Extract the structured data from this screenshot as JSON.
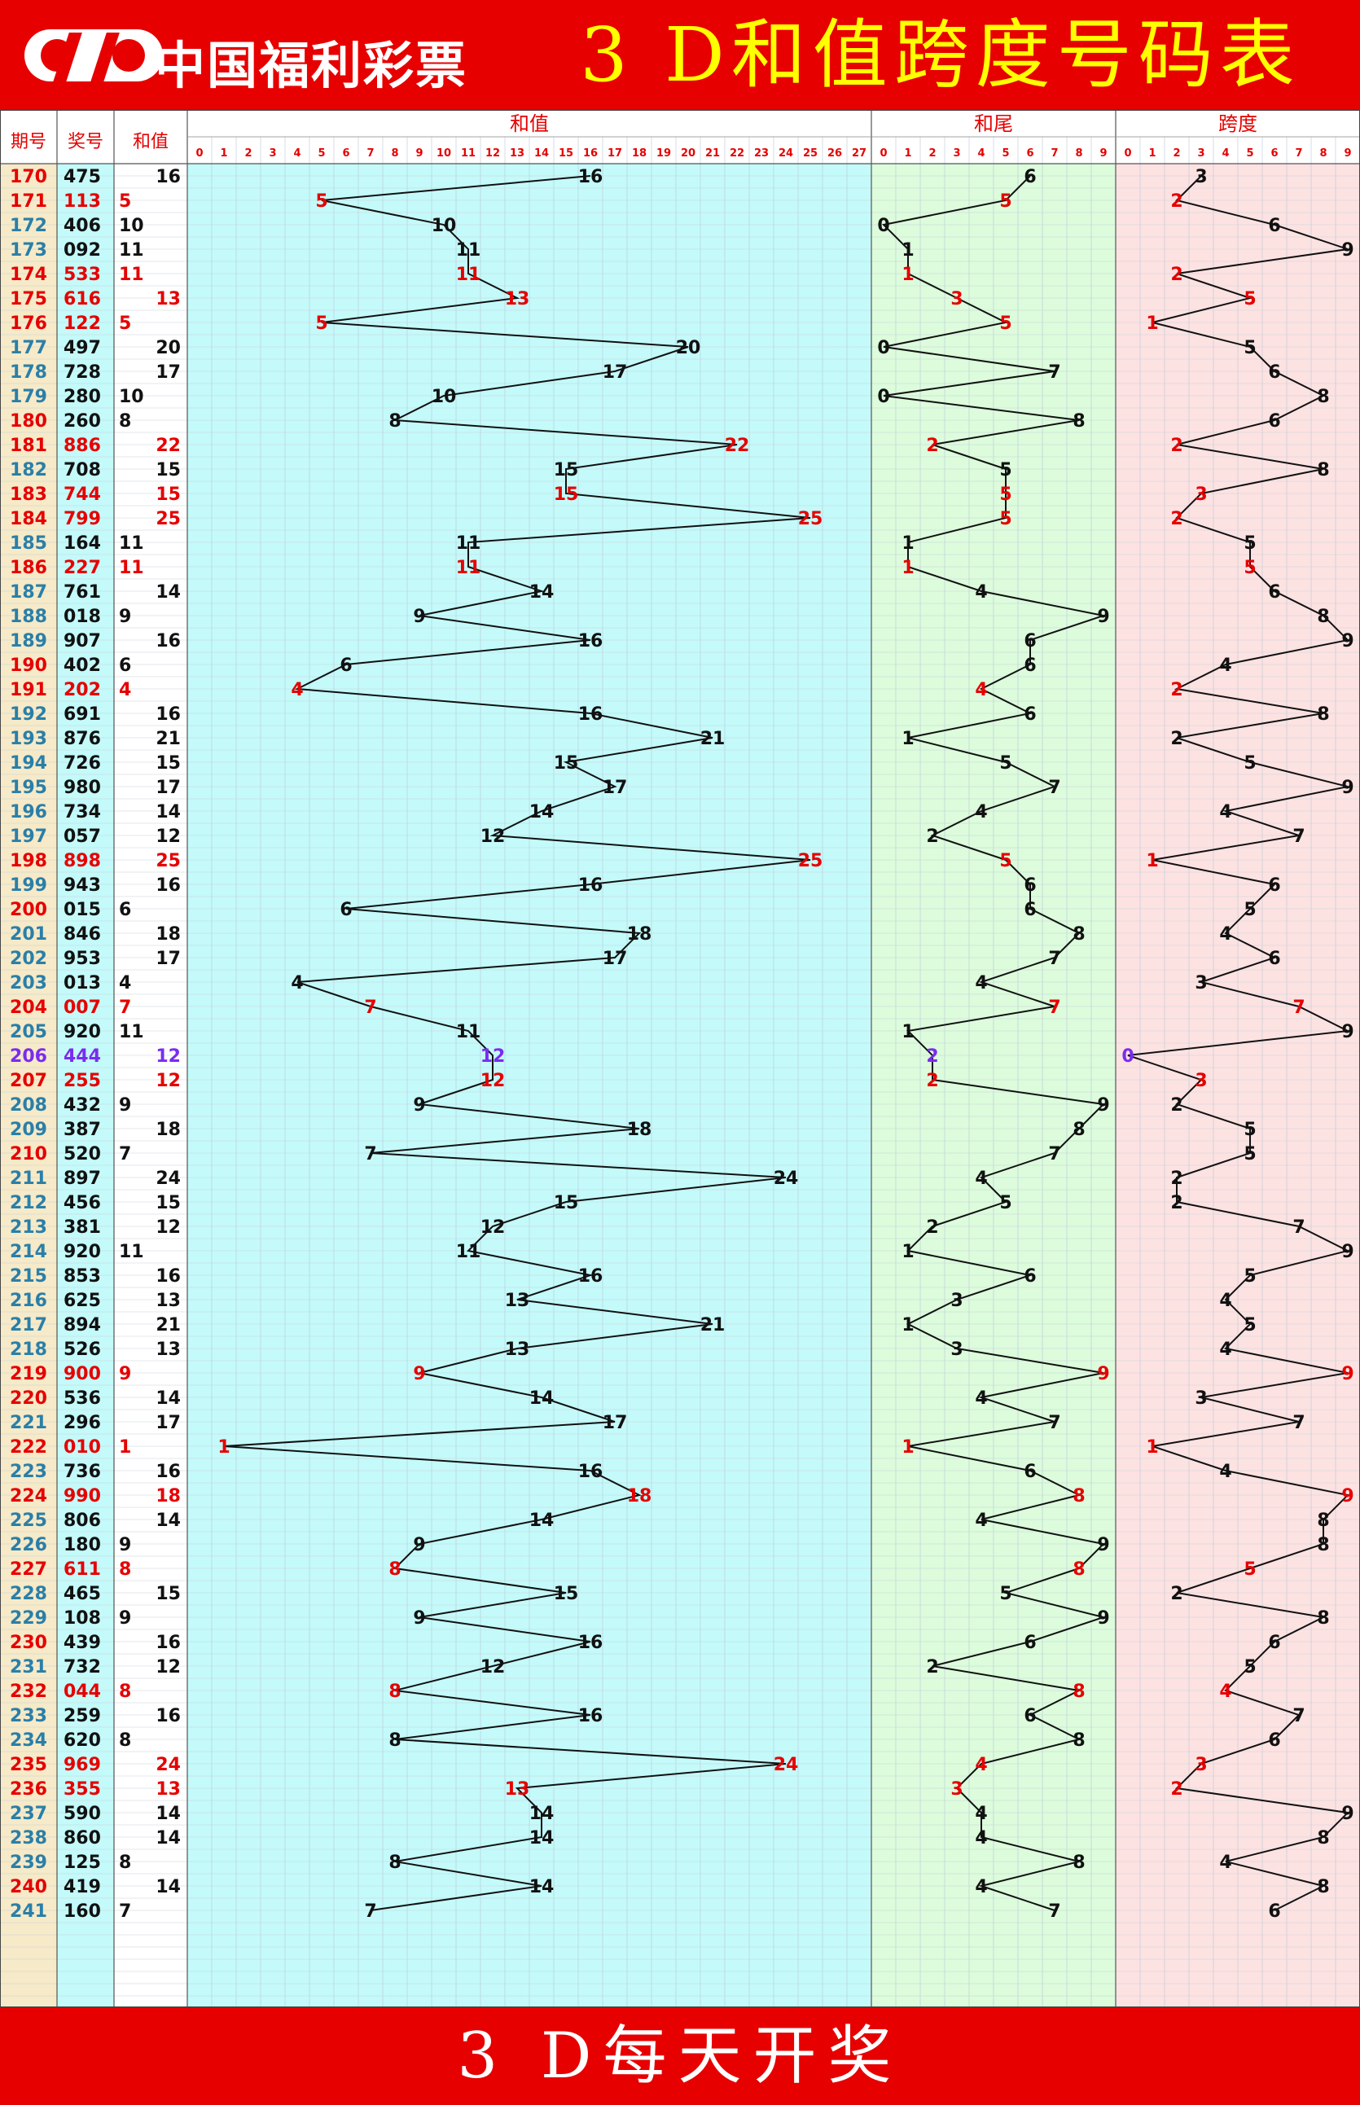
{
  "header": {
    "logo_text": "中国福利彩票",
    "title": "3 D和值跨度号码表"
  },
  "footer": {
    "text": "3 D每天开奖"
  },
  "columns": {
    "issue": "期号",
    "number": "奖号",
    "sum": "和值",
    "sum_section": "和值",
    "tail_section": "和尾",
    "span_section": "跨度"
  },
  "colors": {
    "red": "#e60000",
    "black": "#111111",
    "purple": "#7a2cf0",
    "sum_bg": "#c4fafa",
    "tail_bg": "#dcfcdc",
    "span_bg": "#fde2e2",
    "issue_bg": "#f6eac8",
    "number_bg": "#c4fafa"
  },
  "chart_data": {
    "type": "line",
    "sections": [
      {
        "name": "和值",
        "range": [
          0,
          27
        ]
      },
      {
        "name": "和尾",
        "range": [
          0,
          9
        ]
      },
      {
        "name": "跨度",
        "range": [
          0,
          9
        ]
      }
    ],
    "rows": [
      {
        "issue": "170",
        "number": "475",
        "sum": 16,
        "tail": 6,
        "span": 3,
        "hl": "issue"
      },
      {
        "issue": "171",
        "number": "113",
        "sum": 5,
        "tail": 5,
        "span": 2,
        "hl": "red"
      },
      {
        "issue": "172",
        "number": "406",
        "sum": 10,
        "tail": 0,
        "span": 6,
        "hl": ""
      },
      {
        "issue": "173",
        "number": "092",
        "sum": 11,
        "tail": 1,
        "span": 9,
        "hl": ""
      },
      {
        "issue": "174",
        "number": "533",
        "sum": 11,
        "tail": 1,
        "span": 2,
        "hl": "red"
      },
      {
        "issue": "175",
        "number": "616",
        "sum": 13,
        "tail": 3,
        "span": 5,
        "hl": "red"
      },
      {
        "issue": "176",
        "number": "122",
        "sum": 5,
        "tail": 5,
        "span": 1,
        "hl": "red"
      },
      {
        "issue": "177",
        "number": "497",
        "sum": 20,
        "tail": 0,
        "span": 5,
        "hl": ""
      },
      {
        "issue": "178",
        "number": "728",
        "sum": 17,
        "tail": 7,
        "span": 6,
        "hl": ""
      },
      {
        "issue": "179",
        "number": "280",
        "sum": 10,
        "tail": 0,
        "span": 8,
        "hl": ""
      },
      {
        "issue": "180",
        "number": "260",
        "sum": 8,
        "tail": 8,
        "span": 6,
        "hl": "issue"
      },
      {
        "issue": "181",
        "number": "886",
        "sum": 22,
        "tail": 2,
        "span": 2,
        "hl": "red"
      },
      {
        "issue": "182",
        "number": "708",
        "sum": 15,
        "tail": 5,
        "span": 8,
        "hl": ""
      },
      {
        "issue": "183",
        "number": "744",
        "sum": 15,
        "tail": 5,
        "span": 3,
        "hl": "red"
      },
      {
        "issue": "184",
        "number": "799",
        "sum": 25,
        "tail": 5,
        "span": 2,
        "hl": "red"
      },
      {
        "issue": "185",
        "number": "164",
        "sum": 11,
        "tail": 1,
        "span": 5,
        "hl": ""
      },
      {
        "issue": "186",
        "number": "227",
        "sum": 11,
        "tail": 1,
        "span": 5,
        "hl": "red"
      },
      {
        "issue": "187",
        "number": "761",
        "sum": 14,
        "tail": 4,
        "span": 6,
        "hl": ""
      },
      {
        "issue": "188",
        "number": "018",
        "sum": 9,
        "tail": 9,
        "span": 8,
        "hl": ""
      },
      {
        "issue": "189",
        "number": "907",
        "sum": 16,
        "tail": 6,
        "span": 9,
        "hl": ""
      },
      {
        "issue": "190",
        "number": "402",
        "sum": 6,
        "tail": 6,
        "span": 4,
        "hl": "issue"
      },
      {
        "issue": "191",
        "number": "202",
        "sum": 4,
        "tail": 4,
        "span": 2,
        "hl": "red"
      },
      {
        "issue": "192",
        "number": "691",
        "sum": 16,
        "tail": 6,
        "span": 8,
        "hl": ""
      },
      {
        "issue": "193",
        "number": "876",
        "sum": 21,
        "tail": 1,
        "span": 2,
        "hl": ""
      },
      {
        "issue": "194",
        "number": "726",
        "sum": 15,
        "tail": 5,
        "span": 5,
        "hl": ""
      },
      {
        "issue": "195",
        "number": "980",
        "sum": 17,
        "tail": 7,
        "span": 9,
        "hl": ""
      },
      {
        "issue": "196",
        "number": "734",
        "sum": 14,
        "tail": 4,
        "span": 4,
        "hl": ""
      },
      {
        "issue": "197",
        "number": "057",
        "sum": 12,
        "tail": 2,
        "span": 7,
        "hl": ""
      },
      {
        "issue": "198",
        "number": "898",
        "sum": 25,
        "tail": 5,
        "span": 1,
        "hl": "red"
      },
      {
        "issue": "199",
        "number": "943",
        "sum": 16,
        "tail": 6,
        "span": 6,
        "hl": ""
      },
      {
        "issue": "200",
        "number": "015",
        "sum": 6,
        "tail": 6,
        "span": 5,
        "hl": "issue"
      },
      {
        "issue": "201",
        "number": "846",
        "sum": 18,
        "tail": 8,
        "span": 4,
        "hl": ""
      },
      {
        "issue": "202",
        "number": "953",
        "sum": 17,
        "tail": 7,
        "span": 6,
        "hl": ""
      },
      {
        "issue": "203",
        "number": "013",
        "sum": 4,
        "tail": 4,
        "span": 3,
        "hl": ""
      },
      {
        "issue": "204",
        "number": "007",
        "sum": 7,
        "tail": 7,
        "span": 7,
        "hl": "red"
      },
      {
        "issue": "205",
        "number": "920",
        "sum": 11,
        "tail": 1,
        "span": 9,
        "hl": ""
      },
      {
        "issue": "206",
        "number": "444",
        "sum": 12,
        "tail": 2,
        "span": 0,
        "hl": "purple"
      },
      {
        "issue": "207",
        "number": "255",
        "sum": 12,
        "tail": 2,
        "span": 3,
        "hl": "red"
      },
      {
        "issue": "208",
        "number": "432",
        "sum": 9,
        "tail": 9,
        "span": 2,
        "hl": ""
      },
      {
        "issue": "209",
        "number": "387",
        "sum": 18,
        "tail": 8,
        "span": 5,
        "hl": ""
      },
      {
        "issue": "210",
        "number": "520",
        "sum": 7,
        "tail": 7,
        "span": 5,
        "hl": "issue"
      },
      {
        "issue": "211",
        "number": "897",
        "sum": 24,
        "tail": 4,
        "span": 2,
        "hl": ""
      },
      {
        "issue": "212",
        "number": "456",
        "sum": 15,
        "tail": 5,
        "span": 2,
        "hl": ""
      },
      {
        "issue": "213",
        "number": "381",
        "sum": 12,
        "tail": 2,
        "span": 7,
        "hl": ""
      },
      {
        "issue": "214",
        "number": "920",
        "sum": 11,
        "tail": 1,
        "span": 9,
        "hl": ""
      },
      {
        "issue": "215",
        "number": "853",
        "sum": 16,
        "tail": 6,
        "span": 5,
        "hl": ""
      },
      {
        "issue": "216",
        "number": "625",
        "sum": 13,
        "tail": 3,
        "span": 4,
        "hl": ""
      },
      {
        "issue": "217",
        "number": "894",
        "sum": 21,
        "tail": 1,
        "span": 5,
        "hl": ""
      },
      {
        "issue": "218",
        "number": "526",
        "sum": 13,
        "tail": 3,
        "span": 4,
        "hl": ""
      },
      {
        "issue": "219",
        "number": "900",
        "sum": 9,
        "tail": 9,
        "span": 9,
        "hl": "red"
      },
      {
        "issue": "220",
        "number": "536",
        "sum": 14,
        "tail": 4,
        "span": 3,
        "hl": "issue"
      },
      {
        "issue": "221",
        "number": "296",
        "sum": 17,
        "tail": 7,
        "span": 7,
        "hl": ""
      },
      {
        "issue": "222",
        "number": "010",
        "sum": 1,
        "tail": 1,
        "span": 1,
        "hl": "red"
      },
      {
        "issue": "223",
        "number": "736",
        "sum": 16,
        "tail": 6,
        "span": 4,
        "hl": ""
      },
      {
        "issue": "224",
        "number": "990",
        "sum": 18,
        "tail": 8,
        "span": 9,
        "hl": "red"
      },
      {
        "issue": "225",
        "number": "806",
        "sum": 14,
        "tail": 4,
        "span": 8,
        "hl": ""
      },
      {
        "issue": "226",
        "number": "180",
        "sum": 9,
        "tail": 9,
        "span": 8,
        "hl": ""
      },
      {
        "issue": "227",
        "number": "611",
        "sum": 8,
        "tail": 8,
        "span": 5,
        "hl": "red"
      },
      {
        "issue": "228",
        "number": "465",
        "sum": 15,
        "tail": 5,
        "span": 2,
        "hl": ""
      },
      {
        "issue": "229",
        "number": "108",
        "sum": 9,
        "tail": 9,
        "span": 8,
        "hl": ""
      },
      {
        "issue": "230",
        "number": "439",
        "sum": 16,
        "tail": 6,
        "span": 6,
        "hl": "issue"
      },
      {
        "issue": "231",
        "number": "732",
        "sum": 12,
        "tail": 2,
        "span": 5,
        "hl": ""
      },
      {
        "issue": "232",
        "number": "044",
        "sum": 8,
        "tail": 8,
        "span": 4,
        "hl": "red"
      },
      {
        "issue": "233",
        "number": "259",
        "sum": 16,
        "tail": 6,
        "span": 7,
        "hl": ""
      },
      {
        "issue": "234",
        "number": "620",
        "sum": 8,
        "tail": 8,
        "span": 6,
        "hl": ""
      },
      {
        "issue": "235",
        "number": "969",
        "sum": 24,
        "tail": 4,
        "span": 3,
        "hl": "red"
      },
      {
        "issue": "236",
        "number": "355",
        "sum": 13,
        "tail": 3,
        "span": 2,
        "hl": "red"
      },
      {
        "issue": "237",
        "number": "590",
        "sum": 14,
        "tail": 4,
        "span": 9,
        "hl": ""
      },
      {
        "issue": "238",
        "number": "860",
        "sum": 14,
        "tail": 4,
        "span": 8,
        "hl": ""
      },
      {
        "issue": "239",
        "number": "125",
        "sum": 8,
        "tail": 8,
        "span": 4,
        "hl": ""
      },
      {
        "issue": "240",
        "number": "419",
        "sum": 14,
        "tail": 4,
        "span": 8,
        "hl": "issue"
      },
      {
        "issue": "241",
        "number": "160",
        "sum": 7,
        "tail": 7,
        "span": 6,
        "hl": ""
      }
    ]
  }
}
